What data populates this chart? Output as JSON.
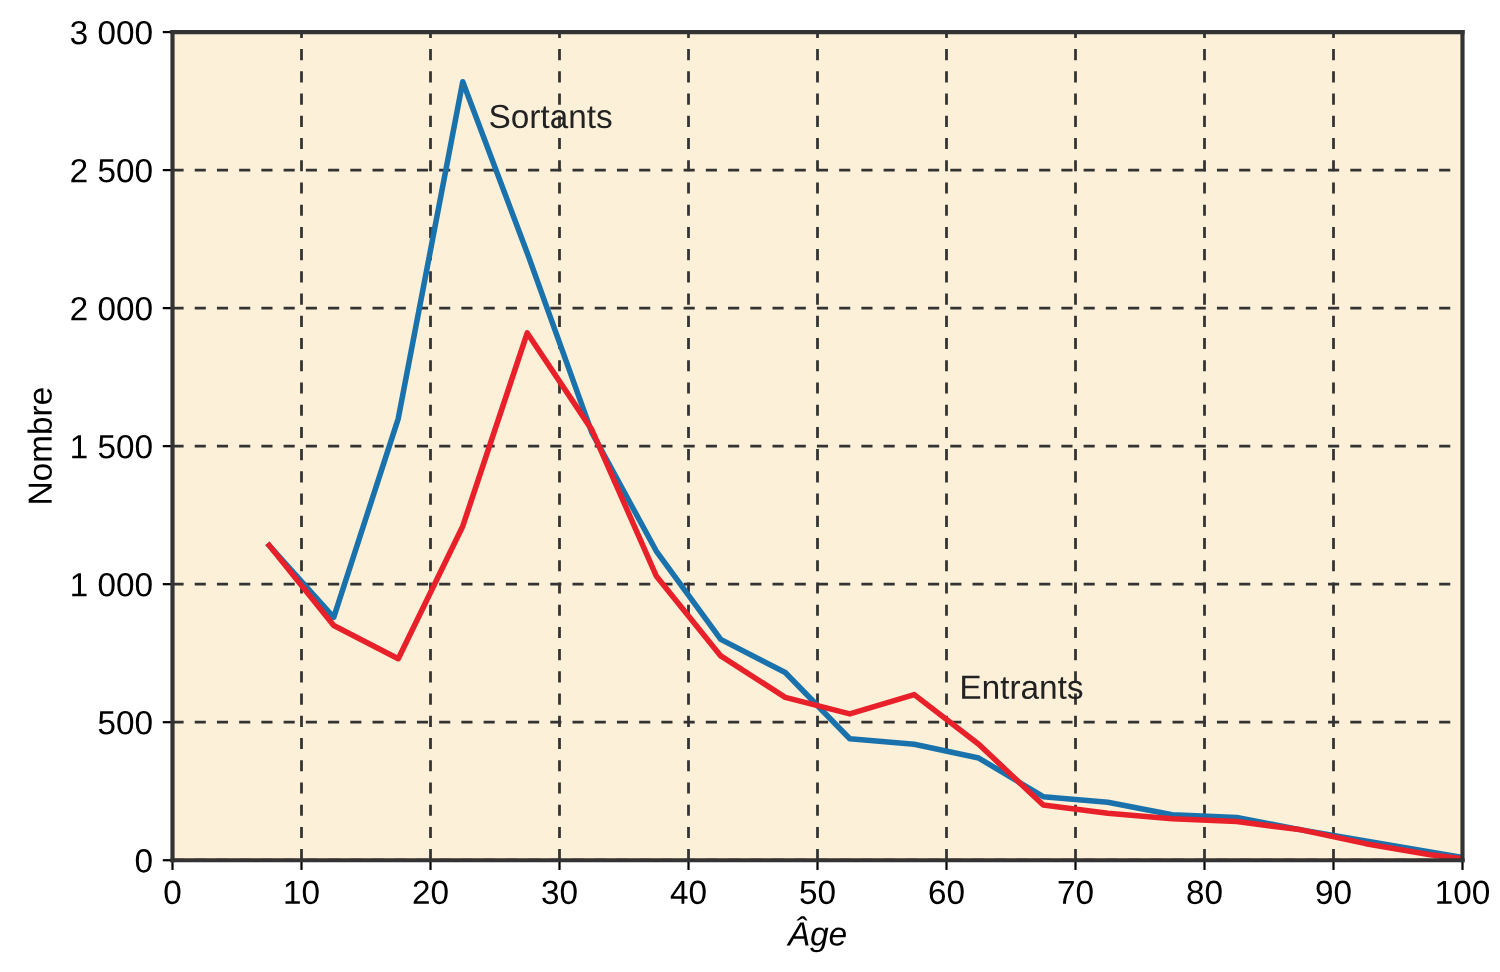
{
  "chart_data": {
    "type": "line",
    "xlabel": "Âge",
    "ylabel": "Nombre",
    "x": [
      7.5,
      12.5,
      17.5,
      22.5,
      27.5,
      32.5,
      37.5,
      42.5,
      47.5,
      52.5,
      57.5,
      62.5,
      67.5,
      72.5,
      77.5,
      82.5,
      87.5,
      92.5,
      97.5,
      100
    ],
    "series": [
      {
        "name": "Sortants",
        "color": "#1a72ad",
        "values": [
          1140,
          880,
          1600,
          2820,
          2200,
          1550,
          1120,
          800,
          680,
          440,
          420,
          370,
          230,
          210,
          165,
          155,
          110,
          70,
          30,
          10
        ]
      },
      {
        "name": "Entrants",
        "color": "#e8202a",
        "values": [
          1140,
          850,
          730,
          1210,
          1910,
          1560,
          1030,
          740,
          590,
          530,
          600,
          420,
          200,
          170,
          150,
          140,
          110,
          60,
          20,
          5
        ]
      }
    ],
    "xlim": [
      0,
      100
    ],
    "ylim": [
      0,
      3000
    ],
    "xticks": [
      0,
      10,
      20,
      30,
      40,
      50,
      60,
      70,
      80,
      90,
      100
    ],
    "yticks": [
      0,
      500,
      {
        "value": 1000,
        "label": "1 000"
      },
      {
        "value": 1500,
        "label": "1 500"
      },
      {
        "value": 2000,
        "label": "2 000"
      },
      {
        "value": 2500,
        "label": "2 500"
      },
      {
        "value": 3000,
        "label": "3 000"
      }
    ],
    "grid": true,
    "legend": false,
    "marker": "none",
    "line_style": "solid"
  }
}
